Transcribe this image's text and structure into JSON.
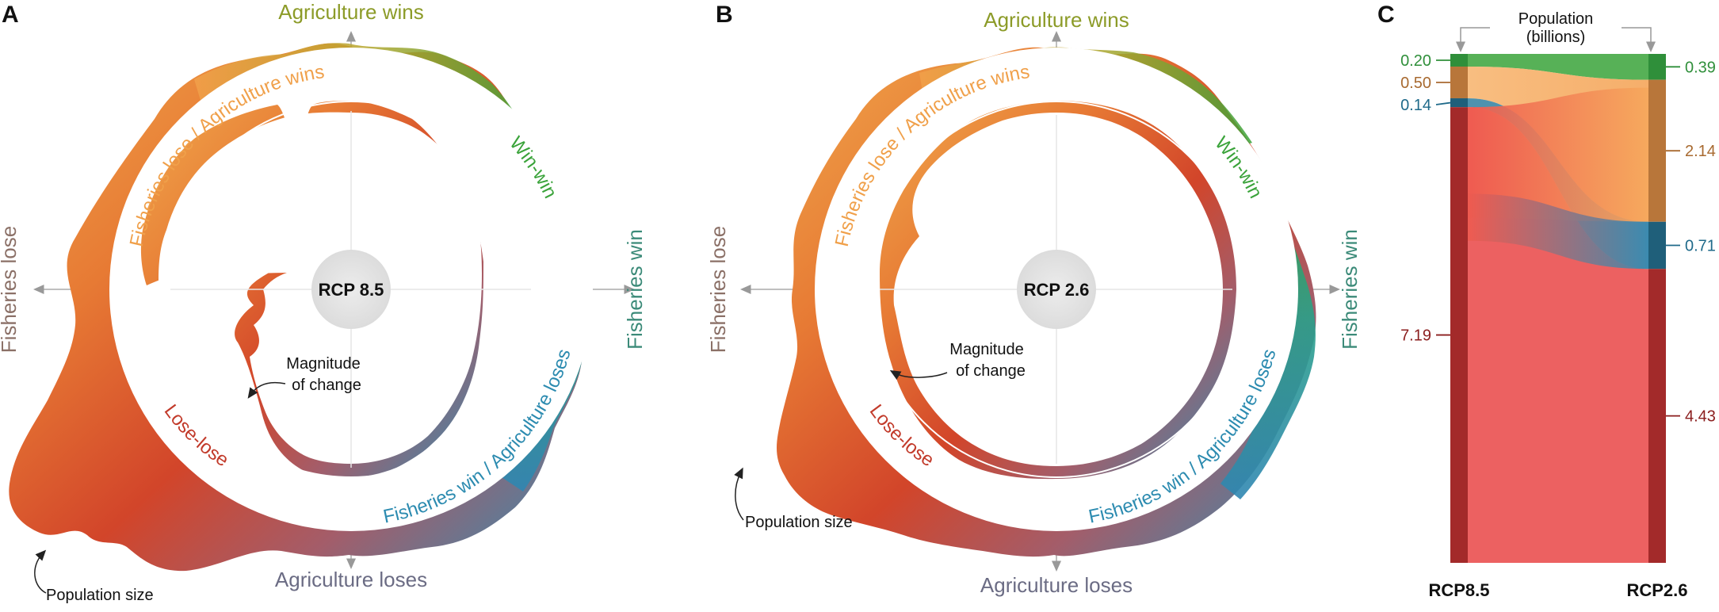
{
  "panels": {
    "a": {
      "letter": "A",
      "center": "RCP 8.5",
      "top": "Agriculture wins",
      "bottom": "Agriculture loses",
      "left": "Fisheries lose",
      "right": "Fisheries win",
      "ring_labels": {
        "fl_aw": "Fisheries lose / Agriculture wins",
        "ww": "Win-win",
        "fw_al": "Fisheries win / Agriculture loses",
        "ll": "Lose-lose"
      },
      "magnitude_note": [
        "Magnitude",
        "of change"
      ],
      "population_note": "Population size"
    },
    "b": {
      "letter": "B",
      "center": "RCP 2.6",
      "top": "Agriculture wins",
      "bottom": "Agriculture loses",
      "left": "Fisheries lose",
      "right": "Fisheries win",
      "ring_labels": {
        "fl_aw": "Fisheries lose / Agriculture wins",
        "ww": "Win-win",
        "fw_al": "Fisheries win / Agriculture loses",
        "ll": "Lose-lose"
      },
      "magnitude_note": [
        "Magnitude",
        "of change"
      ],
      "population_note": "Population size"
    },
    "c": {
      "letter": "C",
      "header": [
        "Population",
        "(billions)"
      ]
    }
  },
  "chart_data": [
    {
      "type": "alluvial",
      "unit": "billions",
      "stages": [
        "RCP8.5",
        "RCP2.6"
      ],
      "categories": [
        "Win-win",
        "Fisheries lose / Agriculture wins",
        "Fisheries win / Agriculture loses",
        "Lose-lose"
      ],
      "colors": {
        "Win-win": "#3aa33a",
        "Fisheries lose / Agriculture wins": "#f2a25c",
        "Fisheries win / Agriculture loses": "#2f7fa0",
        "Lose-lose": "#ea5050"
      },
      "left_values": [
        {
          "category": "Win-win",
          "label": "0.20",
          "value": 0.2
        },
        {
          "category": "Fisheries lose / Agriculture wins",
          "label": "0.50",
          "value": 0.5
        },
        {
          "category": "Fisheries win / Agriculture loses",
          "label": "0.14",
          "value": 0.14
        },
        {
          "category": "Lose-lose",
          "label": "7.19",
          "value": 7.19
        }
      ],
      "right_values": [
        {
          "category": "Win-win",
          "label": "0.39",
          "value": 0.39
        },
        {
          "category": "Fisheries lose / Agriculture wins",
          "label": "2.14",
          "value": 2.14
        },
        {
          "category": "Fisheries win / Agriculture loses",
          "label": "0.71",
          "value": 0.71
        },
        {
          "category": "Lose-lose",
          "label": "4.43",
          "value": 4.43
        }
      ]
    }
  ]
}
